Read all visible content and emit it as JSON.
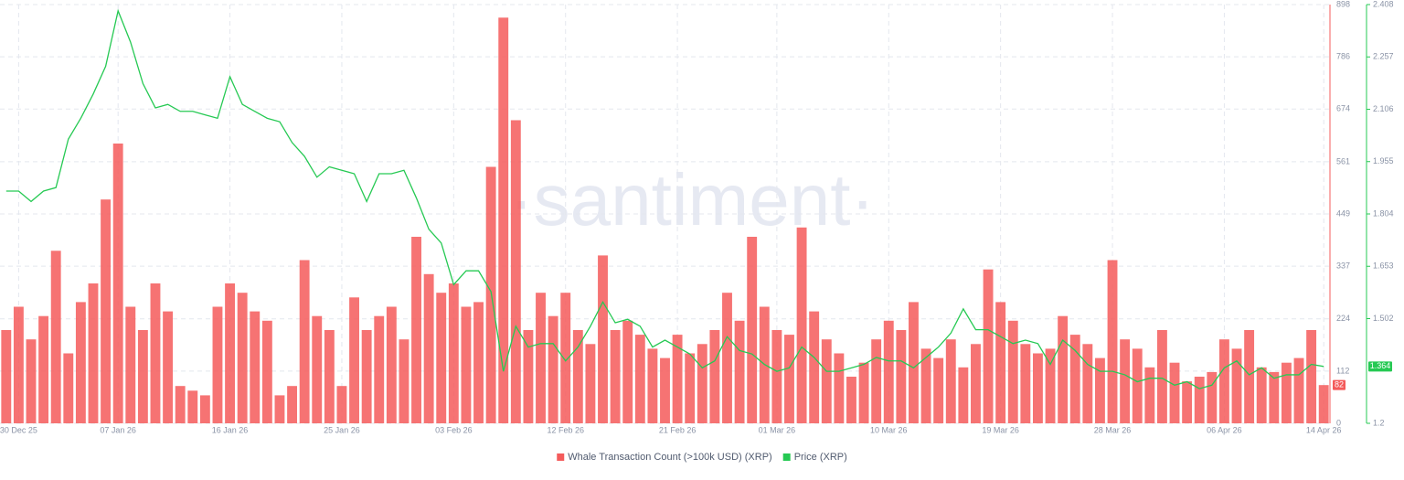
{
  "chart_data": {
    "type": "bar-line",
    "watermark": "·santiment·",
    "categories": [
      null,
      "30 Dec 25",
      null,
      null,
      null,
      null,
      null,
      null,
      null,
      "07 Jan 26",
      null,
      null,
      null,
      null,
      null,
      null,
      null,
      null,
      "16 Jan 26",
      null,
      null,
      null,
      null,
      null,
      null,
      null,
      null,
      "25 Jan 26",
      null,
      null,
      null,
      null,
      null,
      null,
      null,
      null,
      "03 Feb 26",
      null,
      null,
      null,
      null,
      null,
      null,
      null,
      null,
      "12 Feb 26",
      null,
      null,
      null,
      null,
      null,
      null,
      null,
      null,
      "21 Feb 26",
      null,
      null,
      null,
      null,
      null,
      null,
      null,
      "01 Mar 26",
      null,
      null,
      null,
      null,
      null,
      null,
      null,
      null,
      "10 Mar 26",
      null,
      null,
      null,
      null,
      null,
      null,
      null,
      null,
      "19 Mar 26",
      null,
      null,
      null,
      null,
      null,
      null,
      null,
      null,
      "28 Mar 26",
      null,
      null,
      null,
      null,
      null,
      null,
      null,
      null,
      "06 Apr 26",
      null,
      null,
      null,
      null,
      null,
      null,
      null,
      "14 Apr 26"
    ],
    "series": [
      {
        "name": "Whale Transaction Count (>100k USD) (XRP)",
        "color": "#f45b5b",
        "axis": "y",
        "values": [
          200,
          250,
          180,
          230,
          370,
          150,
          260,
          300,
          480,
          600,
          250,
          200,
          300,
          240,
          80,
          70,
          60,
          250,
          300,
          280,
          240,
          220,
          60,
          80,
          350,
          230,
          200,
          80,
          270,
          200,
          230,
          250,
          180,
          400,
          320,
          280,
          300,
          250,
          260,
          550,
          870,
          650,
          200,
          280,
          230,
          280,
          200,
          170,
          360,
          200,
          220,
          190,
          160,
          140,
          190,
          150,
          170,
          200,
          280,
          220,
          400,
          250,
          200,
          190,
          420,
          240,
          180,
          150,
          100,
          130,
          180,
          220,
          200,
          260,
          160,
          140,
          180,
          120,
          170,
          330,
          260,
          220,
          170,
          150,
          160,
          230,
          190,
          170,
          140,
          350,
          180,
          160,
          120,
          200,
          130,
          90,
          100,
          110,
          180,
          160,
          200,
          120,
          110,
          130,
          140,
          200,
          82
        ]
      },
      {
        "name": "Price (XRP)",
        "color": "#26c953",
        "axis": "y2",
        "values": [
          1.87,
          1.87,
          1.84,
          1.87,
          1.88,
          2.02,
          2.08,
          2.15,
          2.23,
          2.39,
          2.3,
          2.18,
          2.11,
          2.12,
          2.1,
          2.1,
          2.09,
          2.08,
          2.2,
          2.12,
          2.1,
          2.08,
          2.07,
          2.01,
          1.97,
          1.91,
          1.94,
          1.93,
          1.92,
          1.84,
          1.92,
          1.92,
          1.93,
          1.85,
          1.76,
          1.72,
          1.6,
          1.64,
          1.64,
          1.58,
          1.35,
          1.48,
          1.42,
          1.43,
          1.43,
          1.38,
          1.42,
          1.48,
          1.55,
          1.49,
          1.5,
          1.48,
          1.42,
          1.44,
          1.42,
          1.4,
          1.36,
          1.38,
          1.45,
          1.41,
          1.4,
          1.37,
          1.35,
          1.36,
          1.42,
          1.39,
          1.35,
          1.35,
          1.36,
          1.37,
          1.39,
          1.38,
          1.38,
          1.36,
          1.39,
          1.42,
          1.46,
          1.53,
          1.47,
          1.47,
          1.45,
          1.43,
          1.44,
          1.43,
          1.37,
          1.44,
          1.41,
          1.37,
          1.35,
          1.35,
          1.34,
          1.32,
          1.33,
          1.33,
          1.31,
          1.32,
          1.3,
          1.31,
          1.36,
          1.38,
          1.34,
          1.36,
          1.33,
          1.34,
          1.34,
          1.37,
          1.364
        ]
      }
    ],
    "ylim": [
      0,
      898
    ],
    "yticks": [
      0,
      112,
      224,
      337,
      449,
      561,
      674,
      786,
      898
    ],
    "y2lim": [
      1.2,
      2.408
    ],
    "y2ticks": [
      1.2,
      1.502,
      1.653,
      1.804,
      1.955,
      2.106,
      2.257,
      2.408
    ],
    "grid": true,
    "legend": "bottom"
  }
}
